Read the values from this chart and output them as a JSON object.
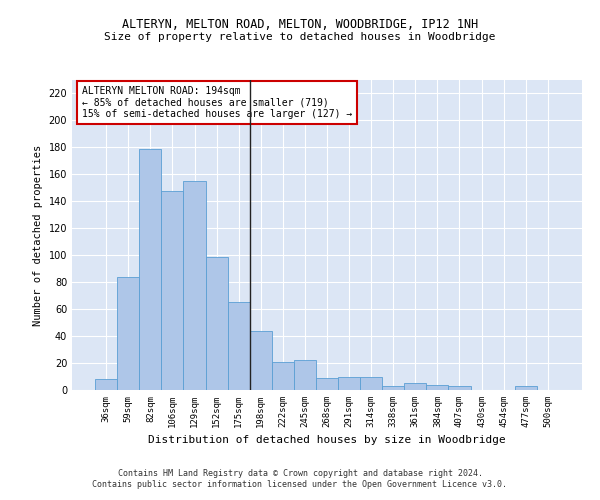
{
  "title1": "ALTERYN, MELTON ROAD, MELTON, WOODBRIDGE, IP12 1NH",
  "title2": "Size of property relative to detached houses in Woodbridge",
  "xlabel": "Distribution of detached houses by size in Woodbridge",
  "ylabel": "Number of detached properties",
  "footnote1": "Contains HM Land Registry data © Crown copyright and database right 2024.",
  "footnote2": "Contains public sector information licensed under the Open Government Licence v3.0.",
  "annotation_title": "ALTERYN MELTON ROAD: 194sqm",
  "annotation_line1": "← 85% of detached houses are smaller (719)",
  "annotation_line2": "15% of semi-detached houses are larger (127) →",
  "bar_categories": [
    "36sqm",
    "59sqm",
    "82sqm",
    "106sqm",
    "129sqm",
    "152sqm",
    "175sqm",
    "198sqm",
    "222sqm",
    "245sqm",
    "268sqm",
    "291sqm",
    "314sqm",
    "338sqm",
    "361sqm",
    "384sqm",
    "407sqm",
    "430sqm",
    "454sqm",
    "477sqm",
    "500sqm"
  ],
  "bar_values": [
    8,
    84,
    179,
    148,
    155,
    99,
    65,
    44,
    21,
    22,
    9,
    10,
    10,
    3,
    5,
    4,
    3,
    0,
    0,
    3,
    0
  ],
  "bar_color": "#aec6e8",
  "bar_edge_color": "#5a9fd4",
  "vline_x_index": 7,
  "vline_color": "#222222",
  "annotation_box_color": "#cc0000",
  "background_color": "#dce6f5",
  "grid_color": "#ffffff",
  "ylim": [
    0,
    230
  ],
  "yticks": [
    0,
    20,
    40,
    60,
    80,
    100,
    120,
    140,
    160,
    180,
    200,
    220
  ]
}
